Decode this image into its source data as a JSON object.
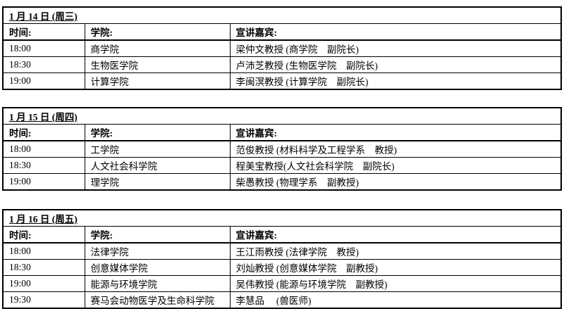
{
  "page": {
    "background_color": "#ffffff",
    "border_color": "#000000",
    "text_color": "#000000"
  },
  "tables": [
    {
      "date_title": "1 月 14 日 (周三)",
      "columns": {
        "time": "时间:",
        "college": "学院:",
        "speaker": "宣讲嘉宾:"
      },
      "rows": [
        {
          "time": "18:00",
          "college": "商学院",
          "speaker": "梁仲文教授 (商学院　副院长)"
        },
        {
          "time": "18:30",
          "college": "生物医学院",
          "speaker": "卢沛芝教授 (生物医学院　副院长)"
        },
        {
          "time": "19:00",
          "college": "计算学院",
          "speaker": "李闽溟教授 (计算学院　副院长)"
        }
      ]
    },
    {
      "date_title": "1 月 15 日 (周四)",
      "columns": {
        "time": "时间:",
        "college": "学院:",
        "speaker": "宣讲嘉宾:"
      },
      "rows": [
        {
          "time": "18:00",
          "college": "工学院",
          "speaker": "范俊教授 (材料科学及工程学系　教授)"
        },
        {
          "time": "18:30",
          "college": "人文社会科学院",
          "speaker": "程美宝教授(人文社会科学院　副院长)"
        },
        {
          "time": "19:00",
          "college": "理学院",
          "speaker": "柴愚教授 (物理学系　副教授)"
        }
      ]
    },
    {
      "date_title": "1 月 16 日 (周五)",
      "columns": {
        "time": "时间:",
        "college": "学院:",
        "speaker": "宣讲嘉宾:"
      },
      "rows": [
        {
          "time": "18:00",
          "college": "法律学院",
          "speaker": "王江雨教授 (法律学院　教授)"
        },
        {
          "time": "18:30",
          "college": "创意媒体学院",
          "speaker": "刘灿教授 (创意媒体学院　副教授)"
        },
        {
          "time": "19:00",
          "college": "能源与环境学院",
          "speaker": "吴伟教授 (能源与环境学院　副教授)"
        },
        {
          "time": "19:30",
          "college": "赛马会动物医学及生命科学院",
          "speaker": "李慧品　 (兽医师)"
        }
      ]
    }
  ]
}
